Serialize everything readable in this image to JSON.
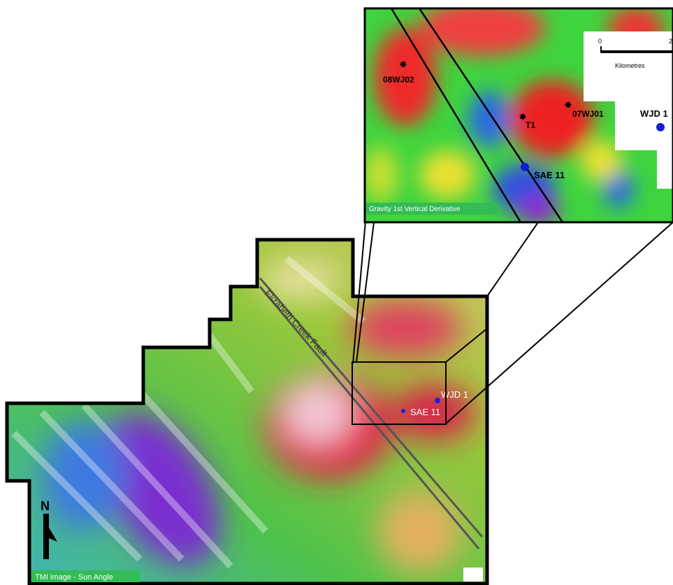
{
  "inset": {
    "title": "Gravity 1st Vertical Derivative",
    "labels": [
      "08WJ02",
      "T1",
      "07WJ01",
      "WJD 1",
      "SAE 11"
    ],
    "scale": {
      "ticks": [
        "0",
        "2"
      ],
      "unit": "Kilometres"
    }
  },
  "main": {
    "title": "TMI image - Sun Angle",
    "fault_label": "Elizabeth Creek Fault",
    "labels": [
      "WJD 1",
      "SAE 11"
    ],
    "north": "N"
  }
}
